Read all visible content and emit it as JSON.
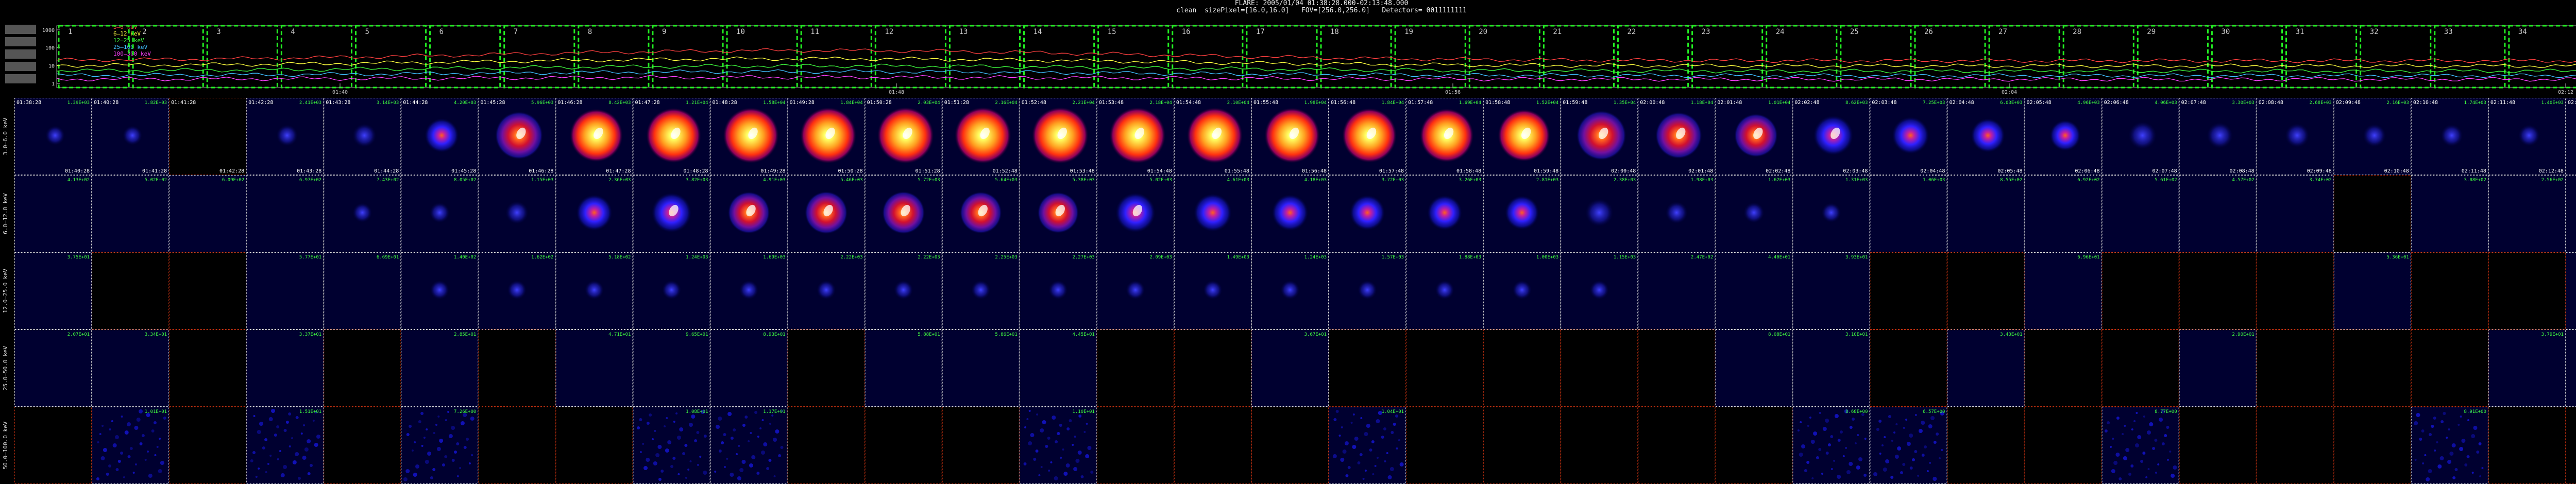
{
  "header": {
    "line1": "FLARE: 2005/01/04 01:38:28.000-02:13:48.000",
    "line2": "clean  sizePixel=[16.0,16.0]   FOV=[256.0,256.0]   Detectors= 0011111111"
  },
  "lightcurve": {
    "legend": [
      "3–6 keV",
      "6–12 keV",
      "12–25 keV",
      "25–100 keV",
      "100–300 keV"
    ],
    "legend_colors": [
      "#ff4040",
      "#ffff40",
      "#40ff40",
      "#40c0ff",
      "#ff40ff"
    ],
    "y_ticks": [
      "1000",
      "100",
      "10",
      "1"
    ],
    "time_ticks": [
      "01:40",
      "01:48",
      "01:56",
      "02:04",
      "02:12"
    ],
    "interval_numbers": [
      "1",
      "2",
      "3",
      "4",
      "5",
      "6",
      "7",
      "8",
      "9",
      "10",
      "11",
      "12",
      "13",
      "14",
      "15",
      "16",
      "17",
      "18",
      "19",
      "20",
      "21",
      "22",
      "23",
      "24",
      "25",
      "26",
      "27",
      "28",
      "29",
      "30",
      "31",
      "32",
      "33",
      "34"
    ]
  },
  "energy_bands": [
    "3.0–6.0 keV",
    "6.0–12.0 keV",
    "12.0–25.0 keV",
    "25.0–50.0 keV",
    "50.0–100.0 keV"
  ],
  "start_times": [
    "01:38:28",
    "01:40:28",
    "01:41:28",
    "01:42:28",
    "01:43:28",
    "01:44:28",
    "01:45:28",
    "01:46:28",
    "01:47:28",
    "01:48:28",
    "01:49:28",
    "01:50:28",
    "01:51:28",
    "01:52:48",
    "01:53:48",
    "01:54:48",
    "01:55:48",
    "01:56:48",
    "01:57:48",
    "01:58:48",
    "01:59:48",
    "02:00:48",
    "02:01:48",
    "02:02:48",
    "02:03:48",
    "02:04:48",
    "02:05:48",
    "02:06:48",
    "02:07:48",
    "02:08:48",
    "02:09:48",
    "02:10:48",
    "02:11:48",
    "02:12:48"
  ],
  "end_times": [
    "01:40:28",
    "01:41:28",
    "01:42:28",
    "01:43:28",
    "01:44:28",
    "01:45:28",
    "01:46:28",
    "01:47:28",
    "01:48:28",
    "01:49:28",
    "01:50:28",
    "01:51:28",
    "01:52:48",
    "01:53:48",
    "01:54:48",
    "01:55:48",
    "01:56:48",
    "01:57:48",
    "01:58:48",
    "01:59:48",
    "02:00:48",
    "02:01:48",
    "02:02:48",
    "02:03:48",
    "02:04:48",
    "02:05:48",
    "02:06:48",
    "02:07:48",
    "02:08:48",
    "02:09:48",
    "02:10:48",
    "02:11:48",
    "02:12:48",
    "02:13:20"
  ],
  "row_peaks": [
    [
      "1.39E+03",
      "1.82E+03",
      "",
      "2.41E+03",
      "3.14E+03",
      "4.20E+03",
      "5.96E+03",
      "8.42E+03",
      "1.21E+04",
      "1.58E+04",
      "1.84E+04",
      "2.03E+04",
      "2.16E+04",
      "2.21E+04",
      "2.18E+04",
      "2.10E+04",
      "1.98E+04",
      "1.84E+04",
      "1.69E+04",
      "1.52E+04",
      "1.35E+04",
      "1.18E+04",
      "1.01E+04",
      "8.62E+03",
      "7.25E+03",
      "6.03E+03",
      "4.96E+03",
      "4.06E+03",
      "3.30E+03",
      "2.68E+03",
      "2.16E+03",
      "1.74E+03",
      "1.40E+03",
      "1.13E+03"
    ],
    [
      "4.13E+02",
      "5.02E+02",
      "6.09E+02",
      "6.97E+02",
      "7.43E+02",
      "8.05E+02",
      "1.15E+03",
      "2.36E+03",
      "3.82E+03",
      "4.91E+03",
      "5.46E+03",
      "5.72E+03",
      "5.64E+03",
      "5.38E+03",
      "5.02E+03",
      "4.61E+03",
      "4.18E+03",
      "3.72E+03",
      "3.26E+03",
      "2.81E+03",
      "2.38E+03",
      "1.98E+03",
      "1.62E+03",
      "1.31E+03",
      "1.06E+03",
      "8.55E+02",
      "6.92E+02",
      "5.61E+02",
      "4.57E+02",
      "3.74E+02",
      "",
      "3.08E+02",
      "2.56E+02",
      "2.13E+02"
    ],
    [
      "3.75E+01",
      "",
      "",
      "5.77E+01",
      "6.69E+01",
      "1.40E+02",
      "1.62E+02",
      "5.18E+02",
      "1.24E+03",
      "1.69E+03",
      "2.22E+03",
      "2.22E+03",
      "2.25E+03",
      "2.27E+03",
      "2.09E+03",
      "1.49E+03",
      "1.24E+03",
      "1.57E+03",
      "1.88E+03",
      "1.00E+03",
      "1.15E+03",
      "2.47E+02",
      "4.40E+01",
      "3.93E+01",
      "",
      "",
      "6.96E+01",
      "",
      "",
      "",
      "5.36E+01",
      "",
      "",
      "1.78E+01"
    ],
    [
      "2.07E+01",
      "3.34E+01",
      "",
      "3.37E+01",
      "",
      "2.85E+01",
      "",
      "4.71E+01",
      "9.65E+01",
      "8.93E+01",
      "",
      "5.88E+01",
      "5.86E+01",
      "4.45E+01",
      "",
      "",
      "3.67E+01",
      "",
      "",
      "",
      "",
      "",
      "8.08E+01",
      "3.10E+01",
      "",
      "3.43E+01",
      "",
      "",
      "2.90E+01",
      "",
      "",
      "",
      "3.79E+01",
      "3.54E+01"
    ],
    [
      "",
      "1.01E+01",
      "",
      "1.51E+01",
      "",
      "7.26E+00",
      "",
      "",
      "1.08E+01",
      "1.17E+01",
      "",
      "",
      "",
      "1.10E+01",
      "",
      "",
      "",
      "1.04E+01",
      "",
      "",
      "",
      "",
      "",
      "8.68E+00",
      "6.57E+00",
      "",
      "",
      "8.77E+00",
      "",
      "",
      "",
      "8.91E+00",
      "",
      ""
    ]
  ],
  "intensity": [
    [
      0.03,
      0.03,
      0,
      0.08,
      0.14,
      0.4,
      0.75,
      0.88,
      0.93,
      0.95,
      0.96,
      0.97,
      0.97,
      0.97,
      0.96,
      0.95,
      0.94,
      0.92,
      0.9,
      0.86,
      0.8,
      0.72,
      0.64,
      0.55,
      0.48,
      0.4,
      0.32,
      0.25,
      0.2,
      0.15,
      0.12,
      0.1,
      0.08,
      0.06
    ],
    [
      0,
      0,
      0,
      0,
      0.03,
      0.05,
      0.12,
      0.45,
      0.55,
      0.6,
      0.62,
      0.62,
      0.6,
      0.58,
      0.55,
      0.5,
      0.46,
      0.43,
      0.42,
      0.4,
      0.25,
      0.1,
      0.06,
      0.03,
      0,
      0,
      0,
      0,
      0,
      0,
      0,
      0,
      0,
      0
    ],
    [
      0,
      0,
      0,
      0,
      0,
      0.02,
      0.02,
      0.02,
      0.02,
      0.02,
      0.02,
      0.02,
      0.02,
      0.02,
      0.02,
      0.02,
      0.02,
      0.02,
      0.02,
      0.02,
      0.02,
      0,
      0,
      0,
      0,
      0,
      0,
      0,
      0,
      0,
      0,
      0,
      0,
      0
    ],
    [
      0,
      0,
      0,
      0,
      0,
      0,
      0,
      0,
      0,
      0,
      0,
      0,
      0,
      0,
      0,
      0,
      0,
      0,
      0,
      0,
      0,
      0,
      0,
      0,
      0,
      0,
      0,
      0,
      0,
      0,
      0,
      0,
      0,
      0
    ],
    [
      0,
      0.15,
      0,
      0.12,
      0.2,
      0.14,
      0,
      0.1,
      0.15,
      0.12,
      0,
      0,
      0,
      0.1,
      0,
      0,
      0,
      0.12,
      0,
      0,
      0,
      0,
      0,
      0.1,
      0.12,
      0,
      0,
      0.1,
      0,
      0,
      0,
      0.14,
      0,
      0
    ]
  ]
}
